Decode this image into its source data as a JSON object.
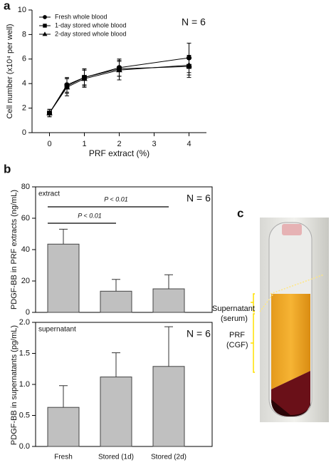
{
  "chart_data": [
    {
      "type": "line",
      "panel_label": "a",
      "x_label": "PRF extract (%)",
      "y_label": "Cell number  (x10⁴ per well)",
      "annotation": "N = 6",
      "x": [
        0,
        0.5,
        1,
        2,
        4
      ],
      "xlim": [
        -0.5,
        4.5
      ],
      "xticks": [
        0,
        1,
        2,
        3,
        4
      ],
      "ylim": [
        0,
        10
      ],
      "yticks": [
        0,
        2,
        4,
        6,
        8,
        10
      ],
      "series": [
        {
          "name": "Fresh whole blood",
          "color": "#000000",
          "marker": "circle",
          "values": [
            1.6,
            3.9,
            4.5,
            5.3,
            6.1
          ],
          "errors": [
            0.3,
            0.6,
            0.7,
            0.7,
            1.2
          ]
        },
        {
          "name": "1-day stored whole blood",
          "color": "#000000",
          "marker": "square",
          "values": [
            1.6,
            3.8,
            4.5,
            5.2,
            5.4
          ],
          "errors": [
            0.3,
            0.6,
            0.6,
            0.6,
            0.9
          ]
        },
        {
          "name": "2-day stored whole blood",
          "color": "#000000",
          "marker": "triangle",
          "values": [
            1.6,
            3.7,
            4.4,
            5.1,
            5.5
          ],
          "errors": [
            0.3,
            0.7,
            0.7,
            0.8,
            0.8
          ]
        }
      ]
    },
    {
      "type": "bar",
      "panel_label": "b",
      "y_label": "PDGF-BB in PRF extracts (ng/mL)",
      "annotations": [
        "extract",
        "N = 6"
      ],
      "significance": [
        "P < 0.01",
        "P < 0.01"
      ],
      "values": [
        43.5,
        13.5,
        15
      ],
      "errors": [
        9.5,
        7.5,
        9
      ],
      "color": "#c0c0c0",
      "ylim": [
        0,
        80
      ],
      "yticks": [
        0,
        20,
        40,
        60,
        80
      ]
    },
    {
      "type": "bar",
      "y_label": "PDGF-BB in supernatants (pg/mL)",
      "annotations": [
        "supernatant",
        "N = 6"
      ],
      "categories": [
        "Fresh",
        "Stored (1d)",
        "Stored (2d)"
      ],
      "values": [
        0.63,
        1.12,
        1.29
      ],
      "errors": [
        0.35,
        0.39,
        0.64
      ],
      "color": "#c0c0c0",
      "ylim": [
        0,
        2
      ],
      "yticks": [
        {
          "value": 0,
          "label": "0.0"
        },
        0.5,
        {
          "value": 1,
          "label": "1.0"
        },
        1.5,
        {
          "value": 2,
          "label": "2.0"
        }
      ]
    }
  ],
  "photo": {
    "panel_label": "c",
    "labels": [
      [
        "Supernatant",
        "(serum)"
      ],
      [
        "PRF",
        "(CGF)"
      ]
    ]
  }
}
